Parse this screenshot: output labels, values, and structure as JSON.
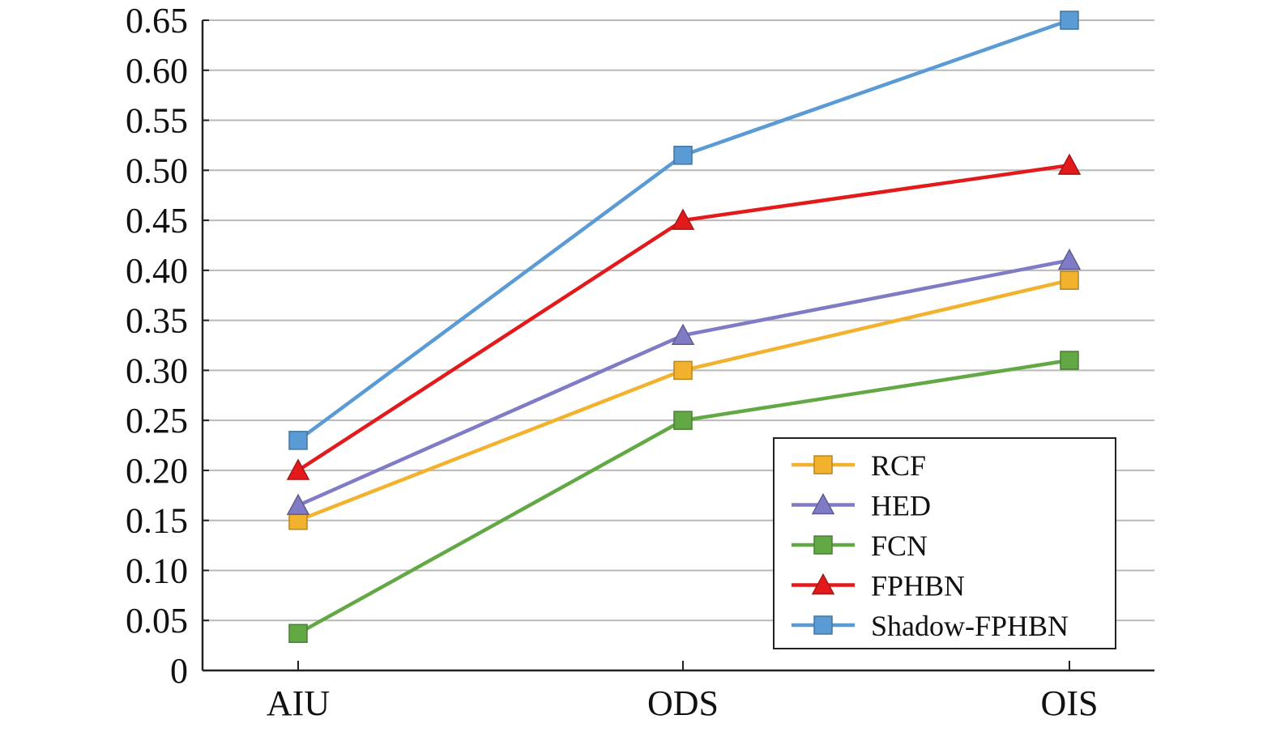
{
  "chart_data": {
    "type": "line",
    "title": "",
    "xlabel": "",
    "ylabel": "",
    "categories": [
      "AIU",
      "ODS",
      "OIS"
    ],
    "ylim": [
      0,
      0.65
    ],
    "yticks": [
      "0",
      "0.05",
      "0.10",
      "0.15",
      "0.20",
      "0.25",
      "0.30",
      "0.35",
      "0.40",
      "0.45",
      "0.50",
      "0.55",
      "0.60",
      "0.65"
    ],
    "ytick_values": [
      0,
      0.05,
      0.1,
      0.15,
      0.2,
      0.25,
      0.3,
      0.35,
      0.4,
      0.45,
      0.5,
      0.55,
      0.6,
      0.65
    ],
    "grid": true,
    "legend_position": "bottom-right",
    "series": [
      {
        "name": "RCF",
        "values": [
          0.15,
          0.3,
          0.39
        ],
        "color": "#F2B22E",
        "marker": "square"
      },
      {
        "name": "HED",
        "values": [
          0.165,
          0.335,
          0.41
        ],
        "color": "#7F7BC4",
        "marker": "triangle"
      },
      {
        "name": "FCN",
        "values": [
          0.037,
          0.25,
          0.31
        ],
        "color": "#62A844",
        "marker": "square"
      },
      {
        "name": "FPHBN",
        "values": [
          0.2,
          0.45,
          0.505
        ],
        "color": "#E31A1C",
        "marker": "triangle"
      },
      {
        "name": "Shadow-FPHBN",
        "values": [
          0.23,
          0.515,
          0.65
        ],
        "color": "#5B9BD5",
        "marker": "square"
      }
    ]
  }
}
